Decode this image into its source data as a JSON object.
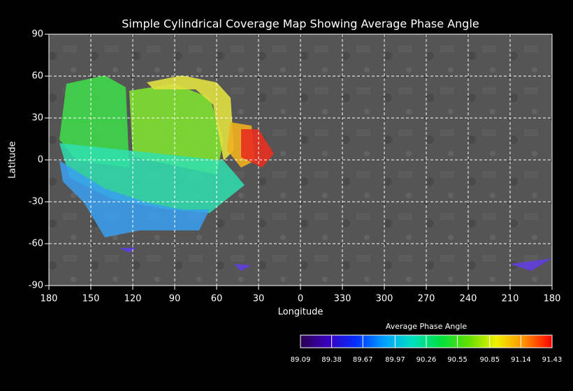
{
  "chart_data": {
    "type": "map",
    "title": "Simple Cylindrical Coverage Map Showing Average Phase Angle",
    "x_label": "Longitude",
    "y_label": "Latitude",
    "xlim": [
      180,
      -180
    ],
    "xticks": [
      180,
      150,
      120,
      90,
      60,
      30,
      0,
      {
        "value": -30,
        "label": "330"
      },
      {
        "value": -60,
        "label": "300"
      },
      {
        "value": -90,
        "label": "270"
      },
      {
        "value": -120,
        "label": "240"
      },
      {
        "value": -150,
        "label": "210"
      },
      {
        "value": -180,
        "label": "180"
      }
    ],
    "ylim": [
      -90,
      90
    ],
    "yticks": [
      90,
      60,
      30,
      0,
      -30,
      -60,
      -90
    ],
    "grid": true,
    "colorbar": {
      "title": "Average Phase Angle",
      "range": [
        89.09,
        91.43
      ],
      "ticks": [
        89.09,
        89.38,
        89.67,
        89.97,
        90.26,
        90.55,
        90.85,
        91.14,
        91.43
      ],
      "colors": [
        "#2a0050",
        "#3a00c0",
        "#0030ff",
        "#00a0ff",
        "#00e0c0",
        "#00e040",
        "#60e000",
        "#f0f000",
        "#ff9000",
        "#ff0000"
      ]
    }
  }
}
